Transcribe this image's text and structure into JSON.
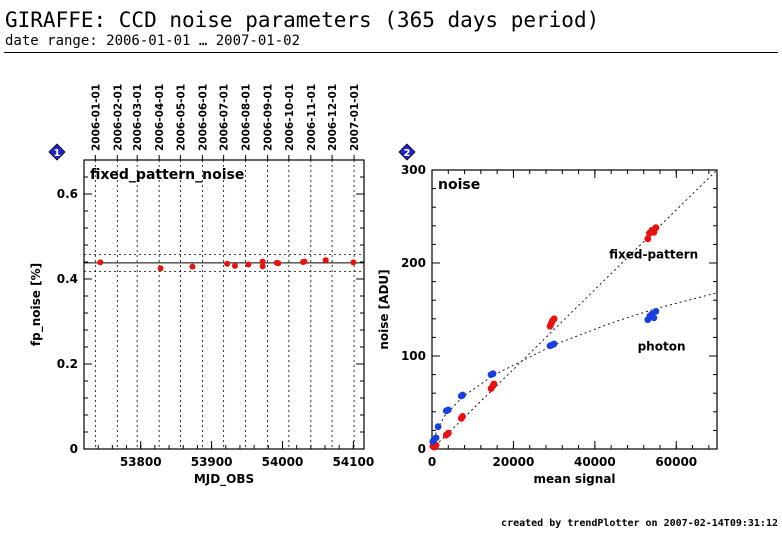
{
  "header": {
    "title": "GIRAFFE: CCD noise parameters (365 days period)",
    "subtitle": "date range: 2006-01-01 … 2007-01-02"
  },
  "footer": {
    "text": "created by trendPlotter on 2007-02-14T09:31:12"
  },
  "colors": {
    "red": "#e8130e",
    "blue": "#1a3fe0",
    "badge": "#2222cc"
  },
  "chart_data": [
    {
      "type": "scatter",
      "badge": "1",
      "title": "fixed_pattern_noise",
      "xlabel": "MJD_OBS",
      "ylabel": "fp_noise [%]",
      "xlim": [
        53720,
        54115
      ],
      "ylim": [
        0,
        0.68
      ],
      "xticks": [
        53800,
        53900,
        54000,
        54100
      ],
      "yticks": [
        0,
        0.2,
        0.4,
        0.6
      ],
      "top_axis_dates": [
        "2006-01-01",
        "2006-02-01",
        "2006-03-01",
        "2006-04-01",
        "2006-05-01",
        "2006-06-01",
        "2006-07-01",
        "2006-08-01",
        "2006-09-01",
        "2006-10-01",
        "2006-11-01",
        "2006-12-01",
        "2007-01-01"
      ],
      "top_axis_mjd": [
        53736,
        53767,
        53795,
        53826,
        53856,
        53887,
        53917,
        53948,
        53979,
        54009,
        54040,
        54070,
        54101
      ],
      "reference_line": 0.438,
      "reference_band": [
        0.418,
        0.458
      ],
      "series": [
        {
          "color": "red",
          "x": [
            53743,
            53828,
            53873,
            53922,
            53933,
            53952,
            53972,
            53972,
            53992,
            53994,
            54029,
            54031,
            54061,
            54100
          ],
          "y": [
            0.439,
            0.425,
            0.429,
            0.436,
            0.431,
            0.434,
            0.441,
            0.43,
            0.438,
            0.437,
            0.44,
            0.441,
            0.444,
            0.439
          ]
        }
      ]
    },
    {
      "type": "scatter",
      "badge": "2",
      "title": "noise",
      "xlabel": "mean signal",
      "ylabel": "noise [ADU]",
      "xlim": [
        0,
        70000
      ],
      "ylim": [
        0,
        300
      ],
      "xticks": [
        0,
        20000,
        40000,
        60000
      ],
      "yticks": [
        0,
        100,
        200,
        300
      ],
      "annotations": [
        "fixed-pattern",
        "photon"
      ],
      "series": [
        {
          "name": "fixed-pattern",
          "color": "red",
          "x": [
            200,
            500,
            1000,
            3500,
            4000,
            7200,
            7500,
            14500,
            15000,
            15200,
            29000,
            29300,
            29600,
            30000,
            53000,
            53400,
            54000,
            54500,
            55000
          ],
          "y": [
            3,
            2,
            4,
            15,
            17,
            33,
            35,
            65,
            68,
            70,
            132,
            135,
            138,
            140,
            226,
            232,
            235,
            233,
            238
          ]
        },
        {
          "name": "photon",
          "color": "blue",
          "x": [
            200,
            500,
            1000,
            1500,
            3500,
            4000,
            7200,
            7500,
            14500,
            15000,
            29000,
            29500,
            30000,
            53000,
            53500,
            54000,
            54500,
            55000
          ],
          "y": [
            8,
            10,
            12,
            24,
            41,
            42,
            57,
            58,
            80,
            81,
            111,
            112,
            113,
            139,
            143,
            145,
            141,
            148
          ]
        }
      ],
      "fit_lines": [
        {
          "series": "fixed-pattern",
          "x": [
            0,
            70000
          ],
          "y": [
            0,
            300
          ]
        },
        {
          "series": "photon",
          "x": [
            0,
            1000,
            3000,
            7500,
            15000,
            30000,
            45000,
            55000,
            70000
          ],
          "y": [
            0,
            18,
            35,
            56,
            79,
            112,
            137,
            151,
            168
          ]
        }
      ]
    }
  ]
}
